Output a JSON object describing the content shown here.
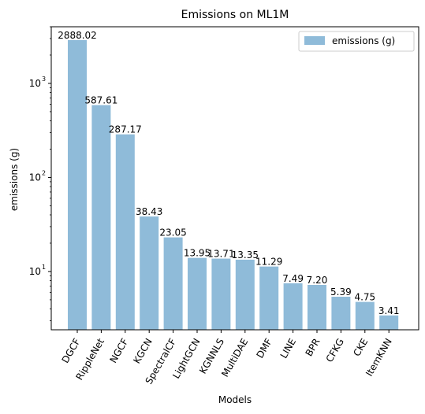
{
  "chart_data": {
    "type": "bar",
    "title": "Emissions on ML1M",
    "xlabel": "Models",
    "ylabel": "emissions (g)",
    "yscale": "log",
    "ylim": [
      2.4,
      4000
    ],
    "yticks": [
      10,
      100,
      1000
    ],
    "ytick_labels": [
      {
        "base": "10",
        "exp": "1"
      },
      {
        "base": "10",
        "exp": "2"
      },
      {
        "base": "10",
        "exp": "3"
      }
    ],
    "grid": false,
    "legend_position": "top-right",
    "bar_color": "#8fbbd9",
    "categories": [
      "DGCF",
      "RippleNet",
      "NGCF",
      "KGCN",
      "SpectralCF",
      "LightGCN",
      "KGNNLS",
      "MultiDAE",
      "DMF",
      "LINE",
      "BPR",
      "CFKG",
      "CKE",
      "ItemKNN"
    ],
    "series": [
      {
        "name": "emissions (g)",
        "values": [
          2888.02,
          587.61,
          287.17,
          38.43,
          23.05,
          13.95,
          13.71,
          13.35,
          11.29,
          7.49,
          7.2,
          5.39,
          4.75,
          3.41
        ],
        "labels": [
          "2888.02",
          "587.61",
          "287.17",
          "38.43",
          "23.05",
          "13.95",
          "13.71",
          "13.35",
          "11.29",
          "7.49",
          "7.20",
          "5.39",
          "4.75",
          "3.41"
        ]
      }
    ]
  }
}
